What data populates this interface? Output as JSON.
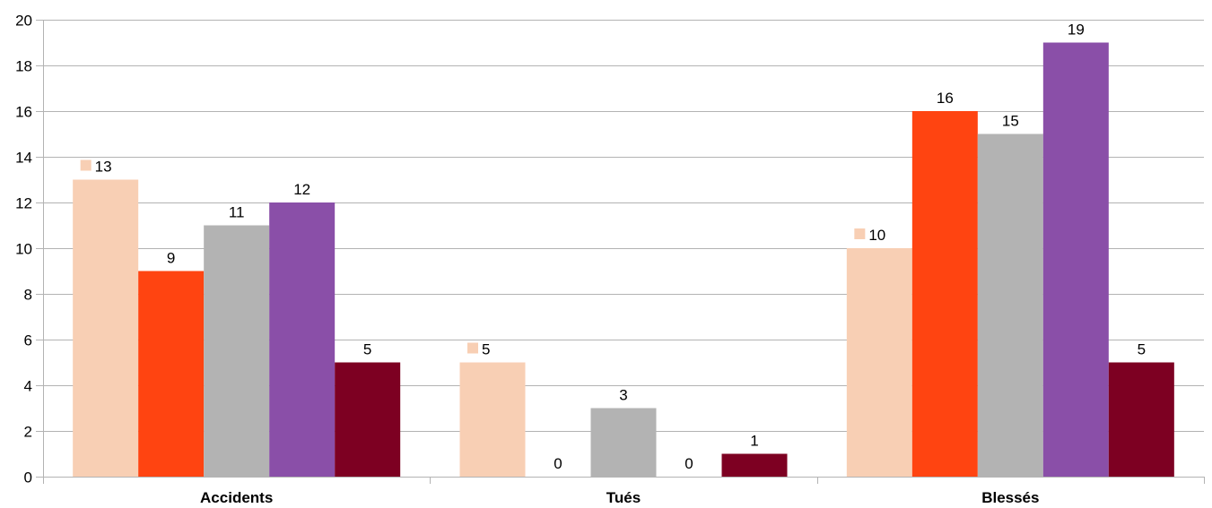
{
  "chart_data": {
    "type": "bar",
    "categories": [
      "Accidents",
      "Tués",
      "Blessés"
    ],
    "series": [
      {
        "values": [
          13,
          5,
          10
        ],
        "color": "#f8cfb4"
      },
      {
        "values": [
          9,
          0,
          16
        ],
        "color": "#ff4411"
      },
      {
        "values": [
          11,
          3,
          15
        ],
        "color": "#b3b3b3"
      },
      {
        "values": [
          12,
          0,
          19
        ],
        "color": "#8a4fa8"
      },
      {
        "values": [
          5,
          1,
          5
        ],
        "color": "#7d0022"
      }
    ],
    "y_ticks": [
      "0",
      "2",
      "4",
      "6",
      "8",
      "10",
      "12",
      "14",
      "16",
      "18",
      "20"
    ],
    "ylim": [
      0,
      20
    ],
    "grid": true,
    "data_labels": true,
    "legend_key_in_first_series_labels": true,
    "gridline_color": "#b3b3b3"
  }
}
